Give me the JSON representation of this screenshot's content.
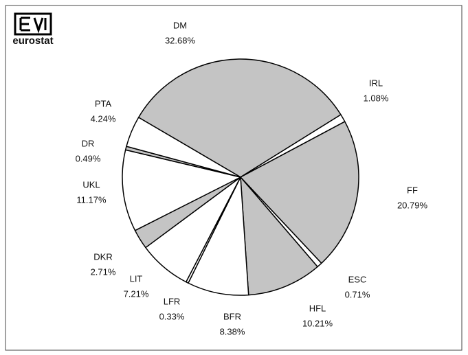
{
  "logo": "eurostat",
  "chart_data": {
    "type": "pie",
    "categories": [
      "DM",
      "IRL",
      "FF",
      "ESC",
      "HFL",
      "BFR",
      "LFR",
      "LIT",
      "DKR",
      "UKL",
      "DR",
      "PTA"
    ],
    "values": [
      32.68,
      1.08,
      20.79,
      0.71,
      10.21,
      8.38,
      0.33,
      7.21,
      2.71,
      11.17,
      0.49,
      4.24
    ],
    "value_labels": [
      "32.68%",
      "1.08%",
      "20.79%",
      "0.71%",
      "10.21%",
      "8.38%",
      "0.33%",
      "7.21%",
      "2.71%",
      "11.17%",
      "0.49%",
      "4.24%"
    ],
    "colors": [
      "#c4c4c4",
      "#ffffff",
      "#c4c4c4",
      "#ffffff",
      "#c4c4c4",
      "#ffffff",
      "#ffffff",
      "#ffffff",
      "#c4c4c4",
      "#ffffff",
      "#c4c4c4",
      "#ffffff"
    ]
  }
}
